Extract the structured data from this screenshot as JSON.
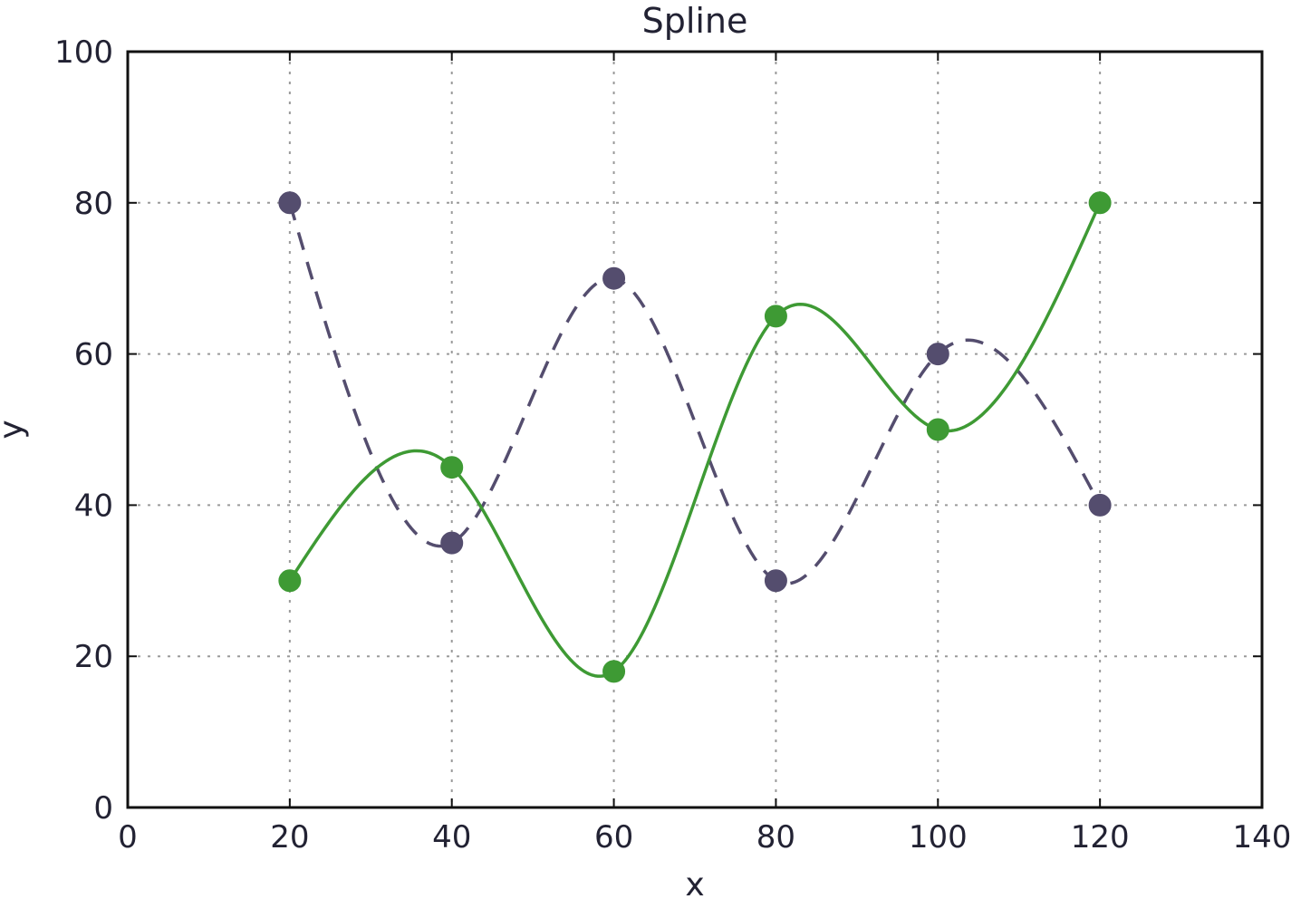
{
  "chart_data": {
    "type": "line",
    "title": "Spline",
    "xlabel": "x",
    "ylabel": "y",
    "xlim": [
      0,
      140
    ],
    "ylim": [
      0,
      100
    ],
    "xticks": [
      0,
      20,
      40,
      60,
      80,
      100,
      120,
      140
    ],
    "yticks": [
      0,
      20,
      40,
      60,
      80,
      100
    ],
    "xtick_labels": [
      "0",
      "20",
      "40",
      "60",
      "80",
      "100",
      "120",
      "140"
    ],
    "ytick_labels": [
      "0",
      "20",
      "40",
      "60",
      "80",
      "100"
    ],
    "grid": true,
    "series": [
      {
        "x": [
          20,
          40,
          60,
          80,
          100,
          120
        ],
        "y": [
          80,
          35,
          70,
          30,
          60,
          40
        ],
        "color": "#544d6e",
        "line_style": "dashed",
        "marker": "circle"
      },
      {
        "x": [
          20,
          40,
          60,
          80,
          100,
          120
        ],
        "y": [
          30,
          45,
          18,
          65,
          50,
          80
        ],
        "color": "#3e9a34",
        "line_style": "solid",
        "marker": "circle"
      }
    ]
  }
}
